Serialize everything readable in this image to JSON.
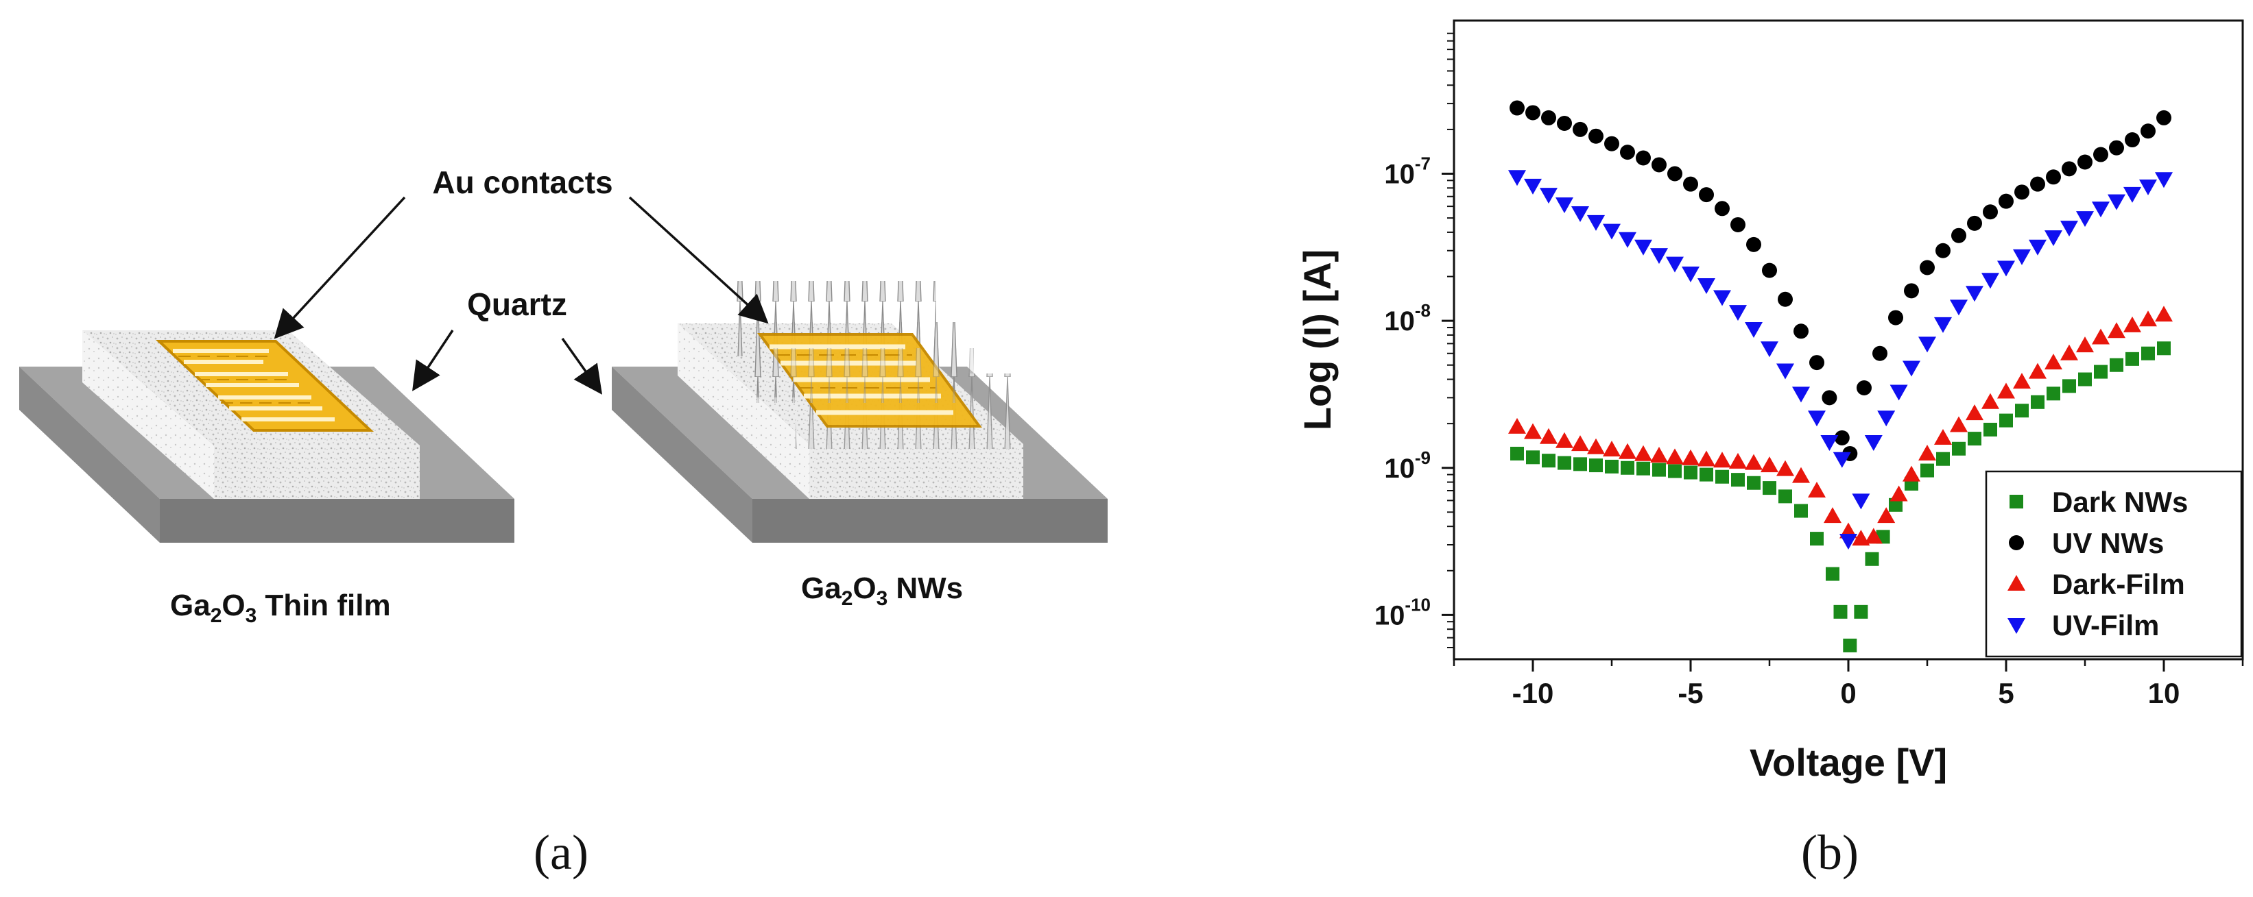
{
  "panel_a": {
    "label": "(a)",
    "annotations": {
      "au_contacts": "Au contacts",
      "quartz": "Quartz"
    },
    "device_left": {
      "name_base": "Ga",
      "sub1": "2",
      "mid": "O",
      "sub2": "3",
      "suffix": "Thin film"
    },
    "device_right": {
      "name_base": "Ga",
      "sub1": "2",
      "mid": "O",
      "sub2": "3",
      "suffix": "NWs"
    },
    "colors": {
      "gold": "#f2b81e",
      "gold_edge": "#c68a00",
      "quartz_top": "#a6a6a6",
      "quartz_side": "#7f7f7f",
      "film": "#e6e6e6"
    }
  },
  "panel_b": {
    "label": "(b)"
  },
  "chart_data": {
    "type": "scatter",
    "title": "",
    "xlabel": "Voltage [V]",
    "ylabel": "Log (I) [A]",
    "xscale": "linear",
    "yscale": "log",
    "xlim": [
      -12.5,
      12.5
    ],
    "ylim": [
      5e-11,
      1.1e-06
    ],
    "xticks": [
      -10,
      -5,
      0,
      5,
      10
    ],
    "xtick_labels": [
      "-10",
      "-5",
      "0",
      "5",
      "10"
    ],
    "yticks": [
      1e-10,
      1e-09,
      1e-08,
      1e-07
    ],
    "ytick_labels": [
      {
        "base": "10",
        "exp": "-10"
      },
      {
        "base": "10",
        "exp": "-9"
      },
      {
        "base": "10",
        "exp": "-8"
      },
      {
        "base": "10",
        "exp": "-7"
      }
    ],
    "legend_position": "bottom-right",
    "grid": false,
    "series": [
      {
        "name": "Dark NWs",
        "color": "#1a8a1a",
        "marker": "square",
        "points": [
          [
            -10.5,
            1.25e-09
          ],
          [
            -10,
            1.18e-09
          ],
          [
            -9.5,
            1.12e-09
          ],
          [
            -9,
            1.08e-09
          ],
          [
            -8.5,
            1.06e-09
          ],
          [
            -8,
            1.04e-09
          ],
          [
            -7.5,
            1.02e-09
          ],
          [
            -7,
            1e-09
          ],
          [
            -6.5,
            9.9e-10
          ],
          [
            -6,
            9.7e-10
          ],
          [
            -5.5,
            9.5e-10
          ],
          [
            -5,
            9.3e-10
          ],
          [
            -4.5,
            9e-10
          ],
          [
            -4,
            8.7e-10
          ],
          [
            -3.5,
            8.3e-10
          ],
          [
            -3,
            7.9e-10
          ],
          [
            -2.5,
            7.3e-10
          ],
          [
            -2,
            6.4e-10
          ],
          [
            -1.5,
            5.1e-10
          ],
          [
            -1,
            3.3e-10
          ],
          [
            -0.5,
            1.9e-10
          ],
          [
            -0.25,
            1.05e-10
          ],
          [
            0.05,
            6.2e-11
          ],
          [
            0.4,
            1.05e-10
          ],
          [
            0.75,
            2.4e-10
          ],
          [
            1.1,
            3.4e-10
          ],
          [
            1.5,
            5.6e-10
          ],
          [
            2,
            7.8e-10
          ],
          [
            2.5,
            9.6e-10
          ],
          [
            3,
            1.15e-09
          ],
          [
            3.5,
            1.35e-09
          ],
          [
            4,
            1.58e-09
          ],
          [
            4.5,
            1.82e-09
          ],
          [
            5,
            2.1e-09
          ],
          [
            5.5,
            2.45e-09
          ],
          [
            6,
            2.8e-09
          ],
          [
            6.5,
            3.2e-09
          ],
          [
            7,
            3.6e-09
          ],
          [
            7.5,
            4e-09
          ],
          [
            8,
            4.5e-09
          ],
          [
            8.5,
            5e-09
          ],
          [
            9,
            5.5e-09
          ],
          [
            9.5,
            6e-09
          ],
          [
            10,
            6.5e-09
          ]
        ]
      },
      {
        "name": "UV NWs",
        "color": "#000000",
        "marker": "circle",
        "points": [
          [
            -10.5,
            2.8e-07
          ],
          [
            -10,
            2.6e-07
          ],
          [
            -9.5,
            2.4e-07
          ],
          [
            -9,
            2.2e-07
          ],
          [
            -8.5,
            2e-07
          ],
          [
            -8,
            1.8e-07
          ],
          [
            -7.5,
            1.6e-07
          ],
          [
            -7,
            1.4e-07
          ],
          [
            -6.5,
            1.28e-07
          ],
          [
            -6,
            1.15e-07
          ],
          [
            -5.5,
            1e-07
          ],
          [
            -5,
            8.5e-08
          ],
          [
            -4.5,
            7.2e-08
          ],
          [
            -4,
            5.8e-08
          ],
          [
            -3.5,
            4.5e-08
          ],
          [
            -3,
            3.3e-08
          ],
          [
            -2.5,
            2.2e-08
          ],
          [
            -2,
            1.4e-08
          ],
          [
            -1.5,
            8.5e-09
          ],
          [
            -1,
            5.2e-09
          ],
          [
            -0.6,
            3e-09
          ],
          [
            -0.2,
            1.6e-09
          ],
          [
            0.05,
            1.25e-09
          ],
          [
            0.5,
            3.5e-09
          ],
          [
            1,
            6e-09
          ],
          [
            1.5,
            1.05e-08
          ],
          [
            2,
            1.6e-08
          ],
          [
            2.5,
            2.3e-08
          ],
          [
            3,
            3e-08
          ],
          [
            3.5,
            3.8e-08
          ],
          [
            4,
            4.6e-08
          ],
          [
            4.5,
            5.5e-08
          ],
          [
            5,
            6.5e-08
          ],
          [
            5.5,
            7.5e-08
          ],
          [
            6,
            8.5e-08
          ],
          [
            6.5,
            9.5e-08
          ],
          [
            7,
            1.08e-07
          ],
          [
            7.5,
            1.2e-07
          ],
          [
            8,
            1.35e-07
          ],
          [
            8.5,
            1.5e-07
          ],
          [
            9,
            1.7e-07
          ],
          [
            9.5,
            1.95e-07
          ],
          [
            10,
            2.4e-07
          ]
        ]
      },
      {
        "name": "Dark-Film",
        "color": "#e8160c",
        "marker": "triangle-up",
        "points": [
          [
            -10.5,
            1.9e-09
          ],
          [
            -10,
            1.75e-09
          ],
          [
            -9.5,
            1.62e-09
          ],
          [
            -9,
            1.52e-09
          ],
          [
            -8.5,
            1.45e-09
          ],
          [
            -8,
            1.38e-09
          ],
          [
            -7.5,
            1.33e-09
          ],
          [
            -7,
            1.28e-09
          ],
          [
            -6.5,
            1.24e-09
          ],
          [
            -6,
            1.21e-09
          ],
          [
            -5.5,
            1.18e-09
          ],
          [
            -5,
            1.16e-09
          ],
          [
            -4.5,
            1.14e-09
          ],
          [
            -4,
            1.12e-09
          ],
          [
            -3.5,
            1.1e-09
          ],
          [
            -3,
            1.08e-09
          ],
          [
            -2.5,
            1.04e-09
          ],
          [
            -2,
            9.8e-10
          ],
          [
            -1.5,
            8.8e-10
          ],
          [
            -1,
            7e-10
          ],
          [
            -0.5,
            4.7e-10
          ],
          [
            0,
            3.7e-10
          ],
          [
            0.4,
            3.3e-10
          ],
          [
            0.8,
            3.4e-10
          ],
          [
            1.2,
            4.7e-10
          ],
          [
            1.6,
            6.6e-10
          ],
          [
            2,
            9e-10
          ],
          [
            2.5,
            1.25e-09
          ],
          [
            3,
            1.6e-09
          ],
          [
            3.5,
            1.95e-09
          ],
          [
            4,
            2.35e-09
          ],
          [
            4.5,
            2.8e-09
          ],
          [
            5,
            3.3e-09
          ],
          [
            5.5,
            3.85e-09
          ],
          [
            6,
            4.5e-09
          ],
          [
            6.5,
            5.2e-09
          ],
          [
            7,
            6e-09
          ],
          [
            7.5,
            6.8e-09
          ],
          [
            8,
            7.7e-09
          ],
          [
            8.5,
            8.5e-09
          ],
          [
            9,
            9.3e-09
          ],
          [
            9.5,
            1.02e-08
          ],
          [
            10,
            1.1e-08
          ]
        ]
      },
      {
        "name": "UV-Film",
        "color": "#1010f0",
        "marker": "triangle-down",
        "points": [
          [
            -10.5,
            9.5e-08
          ],
          [
            -10,
            8.3e-08
          ],
          [
            -9.5,
            7.2e-08
          ],
          [
            -9,
            6.2e-08
          ],
          [
            -8.5,
            5.4e-08
          ],
          [
            -8,
            4.7e-08
          ],
          [
            -7.5,
            4.1e-08
          ],
          [
            -7,
            3.6e-08
          ],
          [
            -6.5,
            3.2e-08
          ],
          [
            -6,
            2.8e-08
          ],
          [
            -5.5,
            2.45e-08
          ],
          [
            -5,
            2.1e-08
          ],
          [
            -4.5,
            1.75e-08
          ],
          [
            -4,
            1.45e-08
          ],
          [
            -3.5,
            1.15e-08
          ],
          [
            -3,
            8.8e-09
          ],
          [
            -2.5,
            6.5e-09
          ],
          [
            -2,
            4.6e-09
          ],
          [
            -1.5,
            3.2e-09
          ],
          [
            -1,
            2.2e-09
          ],
          [
            -0.6,
            1.5e-09
          ],
          [
            -0.2,
            1.15e-09
          ],
          [
            0,
            3.2e-10
          ],
          [
            0.4,
            6e-10
          ],
          [
            0.8,
            1.5e-09
          ],
          [
            1.2,
            2.2e-09
          ],
          [
            1.6,
            3.3e-09
          ],
          [
            2,
            4.8e-09
          ],
          [
            2.5,
            7e-09
          ],
          [
            3,
            9.5e-09
          ],
          [
            3.5,
            1.25e-08
          ],
          [
            4,
            1.55e-08
          ],
          [
            4.5,
            1.9e-08
          ],
          [
            5,
            2.3e-08
          ],
          [
            5.5,
            2.75e-08
          ],
          [
            6,
            3.2e-08
          ],
          [
            6.5,
            3.7e-08
          ],
          [
            7,
            4.3e-08
          ],
          [
            7.5,
            5e-08
          ],
          [
            8,
            5.8e-08
          ],
          [
            8.5,
            6.5e-08
          ],
          [
            9,
            7.3e-08
          ],
          [
            9.5,
            8.2e-08
          ],
          [
            10,
            9.2e-08
          ]
        ]
      }
    ]
  }
}
